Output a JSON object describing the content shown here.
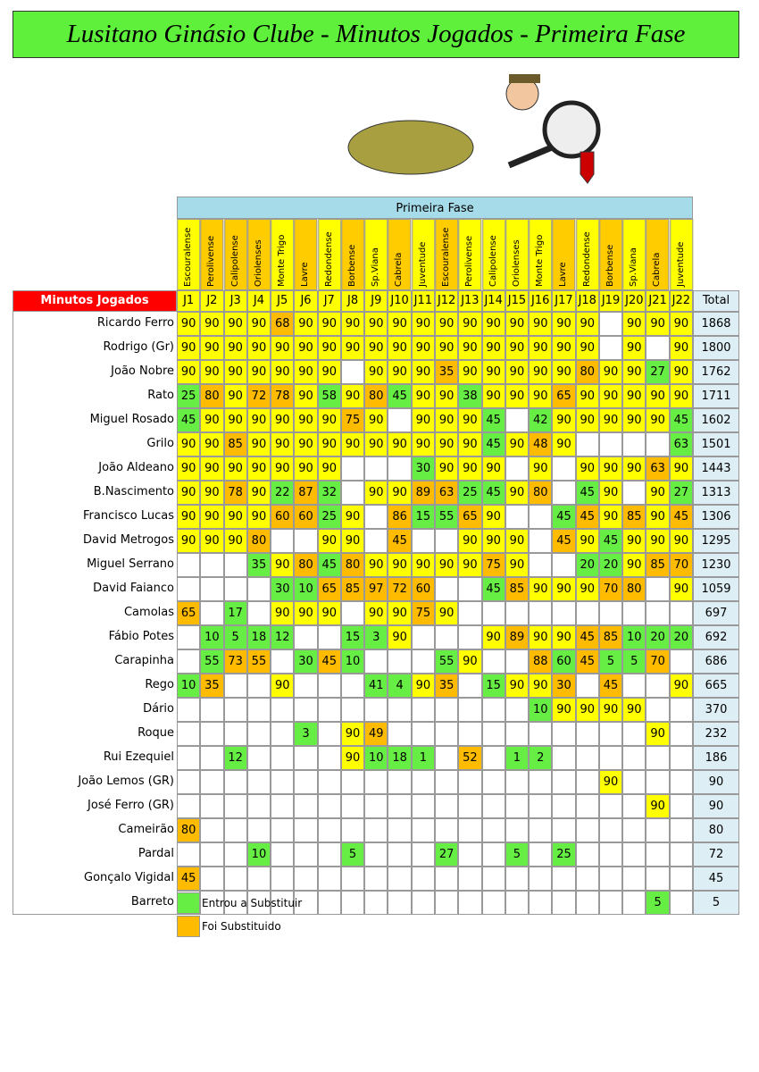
{
  "title": "Lusitano Ginásio Clube - Minutos Jogados - Primeira Fase",
  "phase": "Primeira Fase",
  "row_header": "Minutos Jogados",
  "total_header": "Total",
  "rounds": [
    "J1",
    "J2",
    "J3",
    "J4",
    "J5",
    "J6",
    "J7",
    "J8",
    "J9",
    "J10",
    "J11",
    "J12",
    "J13",
    "J14",
    "J15",
    "J16",
    "J17",
    "J18",
    "J19",
    "J20",
    "J21",
    "J22"
  ],
  "opponents": [
    "Escouralense",
    "Perolivense",
    "Calipolense",
    "Oriolenses",
    "Monte Trigo",
    "Lavre",
    "Redondense",
    "Borbense",
    "Sp.Viana",
    "Cabrela",
    "Juventude",
    "Escouralense",
    "Perolivense",
    "Calipolense",
    "Oriolenses",
    "Monte Trigo",
    "Lavre",
    "Redondense",
    "Borbense",
    "Sp.Viana",
    "Cabrela",
    "Juventude"
  ],
  "opponent_colors": [
    "#ff0",
    "#fc0",
    "#fc0",
    "#fc0",
    "#ff0",
    "#fc0",
    "#ff0",
    "#fc0",
    "#ff0",
    "#fc0",
    "#ff0",
    "#fc0",
    "#ff0",
    "#ff0",
    "#ff0",
    "#ff0",
    "#fc0",
    "#ff0",
    "#fc0",
    "#ff0",
    "#fc0",
    "#ff0"
  ],
  "rows": [
    {
      "name": "Ricardo Ferro",
      "values": [
        90,
        90,
        90,
        90,
        68,
        90,
        90,
        90,
        90,
        90,
        90,
        90,
        90,
        90,
        90,
        90,
        90,
        90,
        null,
        90,
        90,
        90
      ],
      "colors": [
        "#ff0",
        "#ff0",
        "#ff0",
        "#ff0",
        "#fb0",
        "#ff0",
        "#ff0",
        "#ff0",
        "#ff0",
        "#ff0",
        "#ff0",
        "#ff0",
        "#ff0",
        "#ff0",
        "#ff0",
        "#ff0",
        "#ff0",
        "#ff0",
        null,
        "#ff0",
        "#ff0",
        "#ff0"
      ],
      "total": 1868
    },
    {
      "name": "Rodrigo (Gr)",
      "values": [
        90,
        90,
        90,
        90,
        90,
        90,
        90,
        90,
        90,
        90,
        90,
        90,
        90,
        90,
        90,
        90,
        90,
        90,
        null,
        90,
        null,
        90
      ],
      "colors": [
        "#ff0",
        "#ff0",
        "#ff0",
        "#ff0",
        "#ff0",
        "#ff0",
        "#ff0",
        "#ff0",
        "#ff0",
        "#ff0",
        "#ff0",
        "#ff0",
        "#ff0",
        "#ff0",
        "#ff0",
        "#ff0",
        "#ff0",
        "#ff0",
        null,
        "#ff0",
        null,
        "#ff0"
      ],
      "total": 1800
    },
    {
      "name": "João Nobre",
      "values": [
        90,
        90,
        90,
        90,
        90,
        90,
        90,
        null,
        90,
        90,
        90,
        35,
        90,
        90,
        90,
        90,
        90,
        80,
        90,
        90,
        27,
        90
      ],
      "colors": [
        "#ff0",
        "#ff0",
        "#ff0",
        "#ff0",
        "#ff0",
        "#ff0",
        "#ff0",
        null,
        "#ff0",
        "#ff0",
        "#ff0",
        "#fb0",
        "#ff0",
        "#ff0",
        "#ff0",
        "#ff0",
        "#ff0",
        "#fb0",
        "#ff0",
        "#ff0",
        "#6e4",
        "#ff0"
      ],
      "total": 1762
    },
    {
      "name": "Rato",
      "values": [
        25,
        80,
        90,
        72,
        78,
        90,
        58,
        90,
        80,
        45,
        90,
        90,
        38,
        90,
        90,
        90,
        65,
        90,
        90,
        90,
        90,
        90
      ],
      "colors": [
        "#6e4",
        "#fb0",
        "#ff0",
        "#fb0",
        "#fb0",
        "#ff0",
        "#6e4",
        "#ff0",
        "#fb0",
        "#6e4",
        "#ff0",
        "#ff0",
        "#6e4",
        "#ff0",
        "#ff0",
        "#ff0",
        "#fb0",
        "#ff0",
        "#ff0",
        "#ff0",
        "#ff0",
        "#ff0"
      ],
      "total": 1711
    },
    {
      "name": "Miguel Rosado",
      "values": [
        45,
        90,
        90,
        90,
        90,
        90,
        90,
        75,
        90,
        null,
        90,
        90,
        90,
        45,
        null,
        42,
        90,
        90,
        90,
        90,
        90,
        45
      ],
      "colors": [
        "#6e4",
        "#ff0",
        "#ff0",
        "#ff0",
        "#ff0",
        "#ff0",
        "#ff0",
        "#fb0",
        "#ff0",
        null,
        "#ff0",
        "#ff0",
        "#ff0",
        "#6e4",
        null,
        "#6e4",
        "#ff0",
        "#ff0",
        "#ff0",
        "#ff0",
        "#ff0",
        "#6e4"
      ],
      "total": 1602
    },
    {
      "name": "Grilo",
      "values": [
        90,
        90,
        85,
        90,
        90,
        90,
        90,
        90,
        90,
        90,
        90,
        90,
        90,
        45,
        90,
        48,
        90,
        null,
        null,
        null,
        null,
        63
      ],
      "colors": [
        "#ff0",
        "#ff0",
        "#fb0",
        "#ff0",
        "#ff0",
        "#ff0",
        "#ff0",
        "#ff0",
        "#ff0",
        "#ff0",
        "#ff0",
        "#ff0",
        "#ff0",
        "#6e4",
        "#ff0",
        "#fb0",
        "#ff0",
        null,
        null,
        null,
        null,
        "#6e4"
      ],
      "total": 1501
    },
    {
      "name": "João Aldeano",
      "values": [
        90,
        90,
        90,
        90,
        90,
        90,
        90,
        null,
        null,
        null,
        30,
        90,
        90,
        90,
        null,
        90,
        null,
        90,
        90,
        90,
        63,
        90
      ],
      "colors": [
        "#ff0",
        "#ff0",
        "#ff0",
        "#ff0",
        "#ff0",
        "#ff0",
        "#ff0",
        null,
        null,
        null,
        "#6e4",
        "#ff0",
        "#ff0",
        "#ff0",
        null,
        "#ff0",
        null,
        "#ff0",
        "#ff0",
        "#ff0",
        "#fb0",
        "#ff0"
      ],
      "total": 1443
    },
    {
      "name": "B.Nascimento",
      "values": [
        90,
        90,
        78,
        90,
        22,
        87,
        32,
        null,
        90,
        90,
        89,
        63,
        25,
        45,
        90,
        80,
        null,
        45,
        90,
        null,
        90,
        27
      ],
      "colors": [
        "#ff0",
        "#ff0",
        "#fb0",
        "#ff0",
        "#6e4",
        "#fb0",
        "#6e4",
        null,
        "#ff0",
        "#ff0",
        "#fb0",
        "#fb0",
        "#6e4",
        "#6e4",
        "#ff0",
        "#fb0",
        null,
        "#6e4",
        "#ff0",
        null,
        "#ff0",
        "#6e4"
      ],
      "total": 1313
    },
    {
      "name": "Francisco Lucas",
      "values": [
        90,
        90,
        90,
        90,
        60,
        60,
        25,
        90,
        null,
        86,
        15,
        55,
        65,
        90,
        null,
        null,
        45,
        45,
        90,
        85,
        90,
        45
      ],
      "colors": [
        "#ff0",
        "#ff0",
        "#ff0",
        "#ff0",
        "#fb0",
        "#fb0",
        "#6e4",
        "#ff0",
        null,
        "#fb0",
        "#6e4",
        "#6e4",
        "#fb0",
        "#ff0",
        null,
        null,
        "#6e4",
        "#fb0",
        "#ff0",
        "#fb0",
        "#ff0",
        "#fb0"
      ],
      "total": 1306
    },
    {
      "name": "David Metrogos",
      "values": [
        90,
        90,
        90,
        80,
        null,
        null,
        90,
        90,
        null,
        45,
        null,
        null,
        90,
        90,
        90,
        null,
        45,
        90,
        45,
        90,
        90,
        90
      ],
      "colors": [
        "#ff0",
        "#ff0",
        "#ff0",
        "#fb0",
        null,
        null,
        "#ff0",
        "#ff0",
        null,
        "#fb0",
        null,
        null,
        "#ff0",
        "#ff0",
        "#ff0",
        null,
        "#fb0",
        "#ff0",
        "#6e4",
        "#ff0",
        "#ff0",
        "#ff0"
      ],
      "total": 1295
    },
    {
      "name": "Miguel Serrano",
      "values": [
        null,
        null,
        null,
        35,
        90,
        80,
        45,
        80,
        90,
        90,
        90,
        90,
        90,
        75,
        90,
        null,
        null,
        20,
        20,
        90,
        85,
        70
      ],
      "colors": [
        null,
        null,
        null,
        "#6e4",
        "#ff0",
        "#fb0",
        "#6e4",
        "#fb0",
        "#ff0",
        "#ff0",
        "#ff0",
        "#ff0",
        "#ff0",
        "#fb0",
        "#ff0",
        null,
        null,
        "#6e4",
        "#6e4",
        "#ff0",
        "#fb0",
        "#fb0"
      ],
      "total": 1230
    },
    {
      "name": "David Faianco",
      "values": [
        null,
        null,
        null,
        null,
        30,
        10,
        65,
        85,
        97,
        72,
        60,
        null,
        null,
        45,
        85,
        90,
        90,
        90,
        70,
        80,
        null,
        90
      ],
      "colors": [
        null,
        null,
        null,
        null,
        "#6e4",
        "#6e4",
        "#fb0",
        "#fb0",
        "#fb0",
        "#fb0",
        "#fb0",
        null,
        null,
        "#6e4",
        "#fb0",
        "#ff0",
        "#ff0",
        "#ff0",
        "#fb0",
        "#fb0",
        null,
        "#ff0"
      ],
      "total": 1059
    },
    {
      "name": "Camolas",
      "values": [
        65,
        null,
        17,
        null,
        90,
        90,
        90,
        null,
        90,
        90,
        75,
        90,
        null,
        null,
        null,
        null,
        null,
        null,
        null,
        null,
        null,
        null
      ],
      "colors": [
        "#fb0",
        null,
        "#6e4",
        null,
        "#ff0",
        "#ff0",
        "#ff0",
        null,
        "#ff0",
        "#ff0",
        "#fb0",
        "#ff0",
        null,
        null,
        null,
        null,
        null,
        null,
        null,
        null,
        null,
        null
      ],
      "total": 697
    },
    {
      "name": "Fábio Potes",
      "values": [
        null,
        10,
        5,
        18,
        12,
        null,
        null,
        15,
        3,
        90,
        null,
        null,
        null,
        90,
        89,
        90,
        90,
        45,
        85,
        10,
        20,
        20
      ],
      "colors": [
        null,
        "#6e4",
        "#6e4",
        "#6e4",
        "#6e4",
        null,
        null,
        "#6e4",
        "#6e4",
        "#ff0",
        null,
        null,
        null,
        "#ff0",
        "#fb0",
        "#ff0",
        "#ff0",
        "#fb0",
        "#fb0",
        "#6e4",
        "#6e4",
        "#6e4"
      ],
      "total": 692
    },
    {
      "name": "Carapinha",
      "values": [
        null,
        55,
        73,
        55,
        null,
        30,
        45,
        10,
        null,
        null,
        null,
        55,
        90,
        null,
        null,
        88,
        60,
        45,
        5,
        5,
        70,
        null
      ],
      "colors": [
        null,
        "#6e4",
        "#fb0",
        "#fb0",
        null,
        "#6e4",
        "#fb0",
        "#6e4",
        null,
        null,
        null,
        "#6e4",
        "#ff0",
        null,
        null,
        "#fb0",
        "#6e4",
        "#fb0",
        "#6e4",
        "#6e4",
        "#fb0",
        null
      ],
      "total": 686
    },
    {
      "name": "Rego",
      "values": [
        10,
        35,
        null,
        null,
        90,
        null,
        null,
        null,
        41,
        4,
        90,
        35,
        null,
        15,
        90,
        90,
        30,
        null,
        45,
        null,
        null,
        90
      ],
      "colors": [
        "#6e4",
        "#fb0",
        null,
        null,
        "#ff0",
        null,
        null,
        null,
        "#6e4",
        "#6e4",
        "#ff0",
        "#fb0",
        null,
        "#6e4",
        "#ff0",
        "#ff0",
        "#fb0",
        null,
        "#fb0",
        null,
        null,
        "#ff0"
      ],
      "total": 665
    },
    {
      "name": "Dário",
      "values": [
        null,
        null,
        null,
        null,
        null,
        null,
        null,
        null,
        null,
        null,
        null,
        null,
        null,
        null,
        null,
        10,
        90,
        90,
        90,
        90,
        null,
        null
      ],
      "colors": [
        null,
        null,
        null,
        null,
        null,
        null,
        null,
        null,
        null,
        null,
        null,
        null,
        null,
        null,
        null,
        "#6e4",
        "#ff0",
        "#ff0",
        "#ff0",
        "#ff0",
        null,
        null
      ],
      "total": 370
    },
    {
      "name": "Roque",
      "values": [
        null,
        null,
        null,
        null,
        null,
        3,
        null,
        90,
        49,
        null,
        null,
        null,
        null,
        null,
        null,
        null,
        null,
        null,
        null,
        null,
        90,
        null
      ],
      "colors": [
        null,
        null,
        null,
        null,
        null,
        "#6e4",
        null,
        "#ff0",
        "#fb0",
        null,
        null,
        null,
        null,
        null,
        null,
        null,
        null,
        null,
        null,
        null,
        "#ff0",
        null
      ],
      "total": 232
    },
    {
      "name": "Rui Ezequiel",
      "values": [
        null,
        null,
        12,
        null,
        null,
        null,
        null,
        90,
        10,
        18,
        1,
        null,
        52,
        null,
        1,
        2,
        null,
        null,
        null,
        null,
        null,
        null
      ],
      "colors": [
        null,
        null,
        "#6e4",
        null,
        null,
        null,
        null,
        "#ff0",
        "#6e4",
        "#6e4",
        "#6e4",
        null,
        "#fb0",
        null,
        "#6e4",
        "#6e4",
        null,
        null,
        null,
        null,
        null,
        null
      ],
      "total": 186
    },
    {
      "name": "João Lemos (GR)",
      "values": [
        null,
        null,
        null,
        null,
        null,
        null,
        null,
        null,
        null,
        null,
        null,
        null,
        null,
        null,
        null,
        null,
        null,
        null,
        90,
        null,
        null,
        null
      ],
      "colors": [
        null,
        null,
        null,
        null,
        null,
        null,
        null,
        null,
        null,
        null,
        null,
        null,
        null,
        null,
        null,
        null,
        null,
        null,
        "#ff0",
        null,
        null,
        null
      ],
      "total": 90
    },
    {
      "name": "José Ferro (GR)",
      "values": [
        null,
        null,
        null,
        null,
        null,
        null,
        null,
        null,
        null,
        null,
        null,
        null,
        null,
        null,
        null,
        null,
        null,
        null,
        null,
        null,
        90,
        null
      ],
      "colors": [
        null,
        null,
        null,
        null,
        null,
        null,
        null,
        null,
        null,
        null,
        null,
        null,
        null,
        null,
        null,
        null,
        null,
        null,
        null,
        null,
        "#ff0",
        null
      ],
      "total": 90
    },
    {
      "name": "Cameirão",
      "values": [
        80,
        null,
        null,
        null,
        null,
        null,
        null,
        null,
        null,
        null,
        null,
        null,
        null,
        null,
        null,
        null,
        null,
        null,
        null,
        null,
        null,
        null
      ],
      "colors": [
        "#fb0",
        null,
        null,
        null,
        null,
        null,
        null,
        null,
        null,
        null,
        null,
        null,
        null,
        null,
        null,
        null,
        null,
        null,
        null,
        null,
        null,
        null
      ],
      "total": 80
    },
    {
      "name": "Pardal",
      "values": [
        null,
        null,
        null,
        10,
        null,
        null,
        null,
        5,
        null,
        null,
        null,
        27,
        null,
        null,
        5,
        null,
        25,
        null,
        null,
        null,
        null,
        null
      ],
      "colors": [
        null,
        null,
        null,
        "#6e4",
        null,
        null,
        null,
        "#6e4",
        null,
        null,
        null,
        "#6e4",
        null,
        null,
        "#6e4",
        null,
        "#6e4",
        null,
        null,
        null,
        null,
        null
      ],
      "total": 72
    },
    {
      "name": "Gonçalo Vigidal",
      "values": [
        45,
        null,
        null,
        null,
        null,
        null,
        null,
        null,
        null,
        null,
        null,
        null,
        null,
        null,
        null,
        null,
        null,
        null,
        null,
        null,
        null,
        null
      ],
      "colors": [
        "#fb0",
        null,
        null,
        null,
        null,
        null,
        null,
        null,
        null,
        null,
        null,
        null,
        null,
        null,
        null,
        null,
        null,
        null,
        null,
        null,
        null,
        null
      ],
      "total": 45
    },
    {
      "name": "Barreto",
      "values": [
        null,
        null,
        null,
        null,
        null,
        null,
        null,
        null,
        null,
        null,
        null,
        null,
        null,
        null,
        null,
        null,
        null,
        null,
        null,
        null,
        5,
        null
      ],
      "colors": [
        null,
        null,
        null,
        null,
        null,
        null,
        null,
        null,
        null,
        null,
        null,
        null,
        null,
        null,
        null,
        null,
        null,
        null,
        null,
        null,
        "#6e4",
        null
      ],
      "total": 5
    }
  ],
  "legend": [
    {
      "label": "Entrou a Substituir",
      "color": "#6e4"
    },
    {
      "label": "Foi Substituido",
      "color": "#fb0"
    }
  ]
}
